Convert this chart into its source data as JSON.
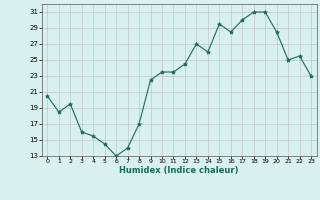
{
  "x": [
    0,
    1,
    2,
    3,
    4,
    5,
    6,
    7,
    8,
    9,
    10,
    11,
    12,
    13,
    14,
    15,
    16,
    17,
    18,
    19,
    20,
    21,
    22,
    23
  ],
  "y": [
    20.5,
    18.5,
    19.5,
    16.0,
    15.5,
    14.5,
    13.0,
    14.0,
    17.0,
    22.5,
    23.5,
    23.5,
    24.5,
    27.0,
    26.0,
    29.5,
    28.5,
    30.0,
    31.0,
    31.0,
    28.5,
    25.0,
    25.5,
    23.0
  ],
  "line_color": "#1a6b5a",
  "marker": "*",
  "marker_size": 3,
  "bg_color": "#d8f0ee",
  "grid_color": "#aaaaaa",
  "xlabel": "Humidex (Indice chaleur)",
  "ylim": [
    13,
    32
  ],
  "xlim": [
    -0.5,
    23.5
  ],
  "yticks": [
    13,
    15,
    17,
    19,
    21,
    23,
    25,
    27,
    29,
    31
  ],
  "xticks": [
    0,
    1,
    2,
    3,
    4,
    5,
    6,
    7,
    8,
    9,
    10,
    11,
    12,
    13,
    14,
    15,
    16,
    17,
    18,
    19,
    20,
    21,
    22,
    23
  ]
}
